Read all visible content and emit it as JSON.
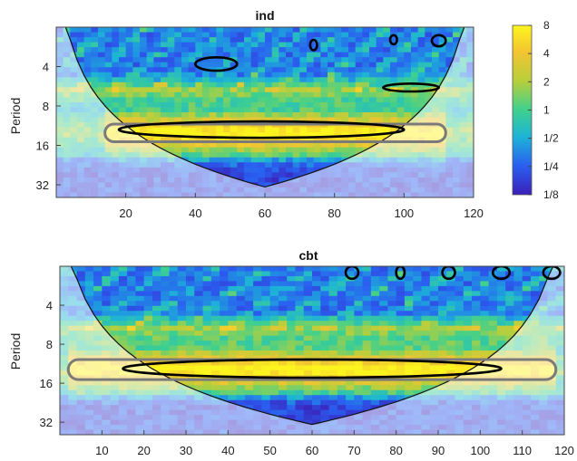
{
  "chart_data": [
    {
      "type": "heatmap",
      "subtype": "wavelet-coherence",
      "title": "ind",
      "ylabel": "Period",
      "xlabel": "",
      "xlim": [
        0,
        120
      ],
      "x_ticks": [
        20,
        40,
        60,
        80,
        100,
        120
      ],
      "y_scale": "log2",
      "ylim": [
        2,
        40
      ],
      "y_ticks": [
        4,
        8,
        16,
        32
      ],
      "colorbar": {
        "scale": "log2",
        "ticks": [
          "8",
          "4",
          "2",
          "1",
          "1/2",
          "1/4",
          "1/8"
        ],
        "tick_values": [
          8,
          4,
          2,
          1,
          0.5,
          0.25,
          0.125
        ],
        "colors": [
          "#3b1fb8",
          "#2a5ef0",
          "#1cb3d8",
          "#3fd08e",
          "#b6cf3c",
          "#f2c431",
          "#fcf41e"
        ]
      },
      "cone_of_influence": true,
      "high_power_band": {
        "period": [
          11,
          15
        ],
        "x": [
          14,
          112
        ]
      },
      "significance_contours": [
        {
          "x_range": [
            18,
            100
          ],
          "period_range": [
            10.5,
            14
          ]
        },
        {
          "x_range": [
            40,
            52
          ],
          "period_range": [
            3.4,
            4.3
          ]
        },
        {
          "x_range": [
            94,
            110
          ],
          "period_range": [
            5.4,
            6.2
          ]
        },
        {
          "x_range": [
            73,
            75
          ],
          "period_range": [
            2.5,
            3.0
          ]
        },
        {
          "x_range": [
            96,
            98
          ],
          "period_range": [
            2.3,
            2.7
          ]
        },
        {
          "x_range": [
            108,
            112
          ],
          "period_range": [
            2.3,
            2.8
          ]
        }
      ]
    },
    {
      "type": "heatmap",
      "subtype": "wavelet-coherence",
      "title": "cbt",
      "ylabel": "Period",
      "xlabel": "",
      "xlim": [
        0,
        120
      ],
      "x_ticks": [
        10,
        20,
        30,
        40,
        50,
        60,
        70,
        80,
        90,
        100,
        110,
        120
      ],
      "y_scale": "log2",
      "ylim": [
        2,
        40
      ],
      "y_ticks": [
        4,
        8,
        16,
        32
      ],
      "cone_of_influence": true,
      "high_power_band": {
        "period": [
          10.5,
          15
        ],
        "x": [
          2,
          118
        ]
      },
      "significance_contours": [
        {
          "x_range": [
            15,
            105
          ],
          "period_range": [
            10.5,
            14.5
          ]
        },
        {
          "x_range": [
            68,
            71
          ],
          "period_range": [
            2.0,
            2.5
          ]
        },
        {
          "x_range": [
            80,
            82
          ],
          "period_range": [
            2.0,
            2.5
          ]
        },
        {
          "x_range": [
            91,
            94
          ],
          "period_range": [
            2.0,
            2.5
          ]
        },
        {
          "x_range": [
            103,
            107
          ],
          "period_range": [
            2.0,
            2.5
          ]
        },
        {
          "x_range": [
            115,
            119
          ],
          "period_range": [
            2.0,
            2.5
          ]
        }
      ]
    }
  ]
}
